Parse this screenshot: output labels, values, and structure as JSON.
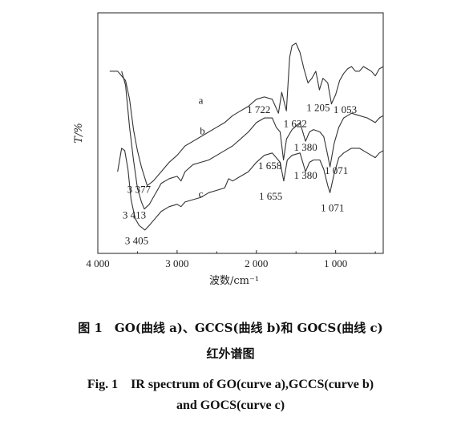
{
  "chart_data": {
    "type": "line",
    "title": "",
    "xlabel": "波数/cm⁻¹",
    "ylabel": "T/%",
    "xlim": [
      4000,
      400
    ],
    "x_reversed": true,
    "grid": false,
    "x_ticks": [
      {
        "value": 4000,
        "label": "4 000"
      },
      {
        "value": 3000,
        "label": "3 000"
      },
      {
        "value": 2000,
        "label": "2 000"
      },
      {
        "value": 1000,
        "label": "1 000"
      }
    ],
    "series": [
      {
        "name": "a",
        "points": [
          [
            3850,
            70
          ],
          [
            3750,
            70
          ],
          [
            3700,
            68
          ],
          [
            3650,
            66
          ],
          [
            3600,
            58
          ],
          [
            3550,
            45
          ],
          [
            3500,
            36
          ],
          [
            3450,
            29
          ],
          [
            3377,
            21
          ],
          [
            3300,
            23
          ],
          [
            3200,
            27
          ],
          [
            3100,
            31
          ],
          [
            3000,
            34
          ],
          [
            2900,
            38
          ],
          [
            2800,
            40
          ],
          [
            2700,
            42
          ],
          [
            2600,
            44
          ],
          [
            2500,
            46
          ],
          [
            2400,
            48
          ],
          [
            2300,
            51
          ],
          [
            2200,
            53
          ],
          [
            2100,
            55
          ],
          [
            2000,
            58
          ],
          [
            1900,
            59
          ],
          [
            1800,
            58
          ],
          [
            1722,
            52
          ],
          [
            1680,
            61
          ],
          [
            1622,
            53
          ],
          [
            1580,
            76
          ],
          [
            1550,
            81
          ],
          [
            1500,
            82
          ],
          [
            1450,
            78
          ],
          [
            1400,
            71
          ],
          [
            1350,
            65
          ],
          [
            1300,
            67
          ],
          [
            1250,
            70
          ],
          [
            1205,
            62
          ],
          [
            1160,
            67
          ],
          [
            1100,
            65
          ],
          [
            1053,
            56
          ],
          [
            1000,
            60
          ],
          [
            950,
            66
          ],
          [
            900,
            69
          ],
          [
            850,
            71
          ],
          [
            800,
            72
          ],
          [
            750,
            70
          ],
          [
            700,
            70
          ],
          [
            650,
            72
          ],
          [
            600,
            71
          ],
          [
            550,
            70
          ],
          [
            500,
            68
          ],
          [
            450,
            71
          ],
          [
            400,
            72
          ]
        ]
      },
      {
        "name": "b",
        "points": [
          [
            3700,
            70
          ],
          [
            3650,
            64
          ],
          [
            3600,
            46
          ],
          [
            3550,
            32
          ],
          [
            3500,
            20
          ],
          [
            3450,
            14
          ],
          [
            3413,
            11
          ],
          [
            3350,
            13
          ],
          [
            3300,
            16
          ],
          [
            3250,
            19
          ],
          [
            3200,
            22
          ],
          [
            3100,
            24
          ],
          [
            3000,
            25
          ],
          [
            2950,
            23
          ],
          [
            2900,
            27
          ],
          [
            2800,
            30
          ],
          [
            2700,
            31
          ],
          [
            2600,
            32
          ],
          [
            2500,
            34
          ],
          [
            2400,
            36
          ],
          [
            2300,
            38
          ],
          [
            2200,
            41
          ],
          [
            2100,
            44
          ],
          [
            2000,
            48
          ],
          [
            1900,
            50
          ],
          [
            1800,
            50
          ],
          [
            1750,
            46
          ],
          [
            1700,
            44
          ],
          [
            1658,
            32
          ],
          [
            1620,
            41
          ],
          [
            1550,
            45
          ],
          [
            1450,
            48
          ],
          [
            1380,
            40
          ],
          [
            1330,
            44
          ],
          [
            1280,
            45
          ],
          [
            1200,
            44
          ],
          [
            1150,
            42
          ],
          [
            1100,
            34
          ],
          [
            1071,
            29
          ],
          [
            1020,
            39
          ],
          [
            960,
            46
          ],
          [
            900,
            50
          ],
          [
            850,
            51
          ],
          [
            800,
            52
          ],
          [
            700,
            51
          ],
          [
            600,
            50
          ],
          [
            500,
            48
          ],
          [
            450,
            50
          ],
          [
            400,
            51
          ]
        ]
      },
      {
        "name": "c",
        "points": [
          [
            3750,
            27
          ],
          [
            3700,
            37
          ],
          [
            3660,
            36
          ],
          [
            3620,
            28
          ],
          [
            3580,
            15
          ],
          [
            3530,
            7
          ],
          [
            3480,
            4
          ],
          [
            3405,
            2
          ],
          [
            3350,
            4
          ],
          [
            3300,
            6
          ],
          [
            3250,
            8
          ],
          [
            3200,
            10
          ],
          [
            3100,
            12
          ],
          [
            3000,
            13
          ],
          [
            2950,
            12
          ],
          [
            2900,
            14
          ],
          [
            2800,
            15
          ],
          [
            2700,
            16
          ],
          [
            2600,
            18
          ],
          [
            2500,
            19
          ],
          [
            2400,
            20
          ],
          [
            2350,
            24
          ],
          [
            2300,
            23
          ],
          [
            2200,
            25
          ],
          [
            2100,
            27
          ],
          [
            2000,
            31
          ],
          [
            1900,
            34
          ],
          [
            1800,
            35
          ],
          [
            1700,
            31
          ],
          [
            1655,
            23
          ],
          [
            1610,
            32
          ],
          [
            1550,
            34
          ],
          [
            1450,
            35
          ],
          [
            1380,
            27
          ],
          [
            1330,
            31
          ],
          [
            1280,
            32
          ],
          [
            1200,
            32
          ],
          [
            1150,
            28
          ],
          [
            1100,
            21
          ],
          [
            1071,
            18
          ],
          [
            1020,
            26
          ],
          [
            960,
            33
          ],
          [
            900,
            35
          ],
          [
            850,
            36
          ],
          [
            800,
            37
          ],
          [
            700,
            37
          ],
          [
            600,
            35
          ],
          [
            500,
            33
          ],
          [
            450,
            35
          ],
          [
            400,
            36
          ]
        ]
      }
    ],
    "series_labels": [
      {
        "text": "a",
        "x": 2700,
        "y": 56
      },
      {
        "text": "b",
        "x": 2680,
        "y": 43
      },
      {
        "text": "c",
        "x": 2700,
        "y": 16
      }
    ],
    "annotations": [
      {
        "text": "1 722",
        "x": 1970,
        "y": 52
      },
      {
        "text": "1 622",
        "x": 1510,
        "y": 46
      },
      {
        "text": "1 205",
        "x": 1220,
        "y": 53
      },
      {
        "text": "1 053",
        "x": 880,
        "y": 52
      },
      {
        "text": "1 380",
        "x": 1380,
        "y": 36
      },
      {
        "text": "3 377",
        "x": 3480,
        "y": 18
      },
      {
        "text": "1 658",
        "x": 1830,
        "y": 28
      },
      {
        "text": "1 071",
        "x": 990,
        "y": 26
      },
      {
        "text": "3 413",
        "x": 3540,
        "y": 7
      },
      {
        "text": "1 380",
        "x": 1380,
        "y": 24
      },
      {
        "text": "1 655",
        "x": 1820,
        "y": 15
      },
      {
        "text": "1 071",
        "x": 1040,
        "y": 10
      },
      {
        "text": "3 405",
        "x": 3510,
        "y": -4
      }
    ]
  },
  "caption": {
    "cn_line1": "图 1　GO(曲线 a)、GCCS(曲线 b)和 GOCS(曲线 c)",
    "cn_line2": "红外谱图",
    "en_line1": "Fig. 1　IR spectrum of GO(curve a),GCCS(curve b)",
    "en_line2": "and GOCS(curve c)"
  }
}
